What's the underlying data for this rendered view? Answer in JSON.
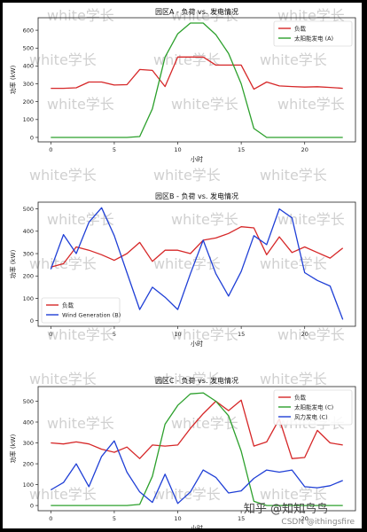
{
  "watermark": "white学长",
  "footer": {
    "zhihu": "知乎 @知知鸟鸟",
    "csdn": "CSDN @ithingsfire"
  },
  "colors": {
    "load": "#d62728",
    "solar": "#2ca02c",
    "wind": "#1f3fd6"
  },
  "chart_data": [
    {
      "type": "line",
      "title": "园区A - 负荷 vs. 发电情况",
      "xlabel": "小时",
      "ylabel": "功率 (kW)",
      "xlim": [
        -1,
        24
      ],
      "ylim": [
        -25,
        670
      ],
      "xticks": [
        0,
        5,
        10,
        15,
        20
      ],
      "yticks": [
        0,
        100,
        200,
        300,
        400,
        500,
        600
      ],
      "legend_position": "top-right",
      "grid": false,
      "x": [
        0,
        1,
        2,
        3,
        4,
        5,
        6,
        7,
        8,
        9,
        10,
        11,
        12,
        13,
        14,
        15,
        16,
        17,
        18,
        19,
        20,
        21,
        22,
        23
      ],
      "series": [
        {
          "name": "负载",
          "color": "#d62728",
          "values": [
            275,
            275,
            278,
            310,
            310,
            293,
            295,
            380,
            375,
            285,
            450,
            450,
            450,
            405,
            405,
            405,
            270,
            310,
            288,
            285,
            282,
            284,
            280,
            275
          ]
        },
        {
          "name": "太阳能发电 (A)",
          "color": "#2ca02c",
          "values": [
            0,
            0,
            0,
            0,
            0,
            0,
            0,
            5,
            160,
            450,
            580,
            640,
            640,
            575,
            470,
            300,
            50,
            0,
            0,
            0,
            0,
            0,
            0,
            0
          ]
        }
      ]
    },
    {
      "type": "line",
      "title": "园区B - 负荷 vs. 发电情况",
      "xlabel": "小时",
      "ylabel": "功率 (kW)",
      "xlim": [
        -1,
        24
      ],
      "ylim": [
        -25,
        530
      ],
      "xticks": [
        0,
        5,
        10,
        15,
        20
      ],
      "yticks": [
        0,
        100,
        200,
        300,
        400,
        500
      ],
      "legend_position": "bottom-left",
      "grid": false,
      "x": [
        0,
        1,
        2,
        3,
        4,
        5,
        6,
        7,
        8,
        9,
        10,
        11,
        12,
        13,
        14,
        15,
        16,
        17,
        18,
        19,
        20,
        21,
        22,
        23
      ],
      "series": [
        {
          "name": "负载",
          "color": "#d62728",
          "values": [
            240,
            255,
            330,
            315,
            295,
            270,
            300,
            350,
            265,
            315,
            315,
            300,
            360,
            370,
            390,
            420,
            415,
            295,
            375,
            305,
            330,
            305,
            280,
            325
          ]
        },
        {
          "name": "Wind Generation (B)",
          "color": "#1f3fd6",
          "values": [
            230,
            385,
            300,
            440,
            505,
            380,
            215,
            50,
            150,
            105,
            50,
            210,
            360,
            210,
            110,
            220,
            380,
            340,
            500,
            460,
            215,
            180,
            155,
            5
          ]
        }
      ]
    },
    {
      "type": "line",
      "title": "园区C - 负荷 vs. 发电情况",
      "xlabel": "小时",
      "ylabel": "功率 (kW)",
      "xlim": [
        -1,
        24
      ],
      "ylim": [
        -25,
        570
      ],
      "xticks": [
        0,
        5,
        10,
        15,
        20
      ],
      "yticks": [
        0,
        100,
        200,
        300,
        400,
        500
      ],
      "legend_position": "top-right",
      "grid": false,
      "x": [
        0,
        1,
        2,
        3,
        4,
        5,
        6,
        7,
        8,
        9,
        10,
        11,
        12,
        13,
        14,
        15,
        16,
        17,
        18,
        19,
        20,
        21,
        22,
        23
      ],
      "series": [
        {
          "name": "负载",
          "color": "#d62728",
          "values": [
            300,
            295,
            305,
            295,
            270,
            255,
            280,
            225,
            290,
            285,
            290,
            370,
            440,
            500,
            455,
            505,
            285,
            305,
            415,
            225,
            230,
            360,
            300,
            290
          ]
        },
        {
          "name": "太阳能发电 (C)",
          "color": "#2ca02c",
          "values": [
            0,
            0,
            0,
            0,
            0,
            0,
            0,
            5,
            140,
            390,
            480,
            535,
            540,
            500,
            430,
            260,
            20,
            0,
            0,
            0,
            0,
            0,
            0,
            0
          ]
        },
        {
          "name": "风力发电 (C)",
          "color": "#1f3fd6",
          "values": [
            75,
            110,
            200,
            90,
            235,
            310,
            160,
            65,
            15,
            150,
            10,
            65,
            170,
            135,
            60,
            70,
            130,
            170,
            160,
            170,
            90,
            85,
            95,
            120
          ]
        }
      ]
    }
  ]
}
